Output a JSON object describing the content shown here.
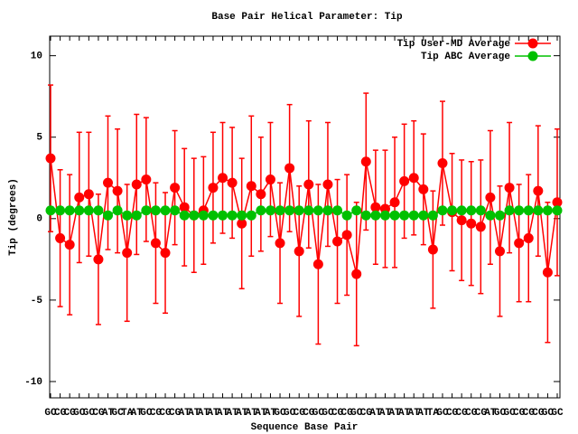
{
  "chart_data": {
    "type": "line",
    "title": "Base Pair Helical Parameter: Tip",
    "x_label": "Sequence Base Pair",
    "y_label": "Tip (degrees)",
    "categories": [
      "GC",
      "CG",
      "CG",
      "GC",
      "GC",
      "CG",
      "AT",
      "GC",
      "TA",
      "AT",
      "GC",
      "CG",
      "CG",
      "CG",
      "AT",
      "AT",
      "AT",
      "AT",
      "AT",
      "AT",
      "AT",
      "AT",
      "AT",
      "AT",
      "GC",
      "GC",
      "CG",
      "CG",
      "GC",
      "GC",
      "CG",
      "CG",
      "GC",
      "CG",
      "AT",
      "AT",
      "AT",
      "AT",
      "AT",
      "AT",
      "TA",
      "GC",
      "CG",
      "CG",
      "CG",
      "CG",
      "AT",
      "GC",
      "GC",
      "CG",
      "CG",
      "CG",
      "GC",
      "GC"
    ],
    "series": [
      {
        "name": "Tip User-MD Average",
        "color": "#ff0000",
        "values": [
          3.7,
          -1.2,
          -1.6,
          1.3,
          1.5,
          -2.5,
          2.2,
          1.7,
          -2.1,
          2.1,
          2.4,
          -1.5,
          -2.1,
          1.9,
          0.7,
          0.2,
          0.5,
          1.9,
          2.5,
          2.2,
          -0.3,
          2.0,
          1.5,
          2.4,
          -1.5,
          3.1,
          -2.0,
          2.1,
          -2.8,
          2.1,
          -1.4,
          -1.0,
          -3.4,
          3.5,
          0.7,
          0.6,
          1.0,
          2.3,
          2.5,
          1.8,
          -1.9,
          3.4,
          0.4,
          -0.1,
          -0.3,
          -0.5,
          1.3,
          -2.0,
          1.9,
          -1.5,
          -1.2,
          1.7,
          -3.3,
          1.0
        ],
        "errors": [
          4.5,
          4.2,
          4.3,
          4.0,
          3.8,
          4.0,
          4.1,
          3.8,
          4.2,
          4.3,
          3.8,
          3.7,
          3.7,
          3.5,
          3.6,
          3.5,
          3.3,
          3.4,
          3.4,
          3.4,
          4.0,
          4.3,
          3.5,
          3.5,
          3.7,
          3.9,
          4.0,
          3.9,
          4.9,
          3.8,
          3.8,
          3.7,
          4.4,
          4.2,
          3.5,
          3.6,
          4.0,
          3.5,
          3.5,
          3.4,
          3.6,
          3.8,
          3.6,
          3.7,
          3.8,
          4.1,
          4.1,
          4.0,
          4.0,
          3.6,
          3.9,
          4.0,
          4.3,
          4.5
        ]
      },
      {
        "name": "Tip ABC Average",
        "color": "#00c000",
        "values": [
          0.5,
          0.5,
          0.5,
          0.5,
          0.5,
          0.5,
          0.2,
          0.5,
          0.2,
          0.2,
          0.5,
          0.5,
          0.5,
          0.5,
          0.2,
          0.2,
          0.2,
          0.2,
          0.2,
          0.2,
          0.2,
          0.2,
          0.5,
          0.5,
          0.5,
          0.5,
          0.5,
          0.5,
          0.5,
          0.5,
          0.5,
          0.2,
          0.5,
          0.2,
          0.2,
          0.2,
          0.2,
          0.2,
          0.2,
          0.2,
          0.2,
          0.5,
          0.5,
          0.5,
          0.5,
          0.5,
          0.2,
          0.2,
          0.5,
          0.5,
          0.5,
          0.5,
          0.5,
          0.5
        ]
      }
    ],
    "ylim": [
      -11,
      11.2
    ],
    "yticks": [
      -10,
      -5,
      0,
      5,
      10
    ],
    "legend": "top-right"
  }
}
